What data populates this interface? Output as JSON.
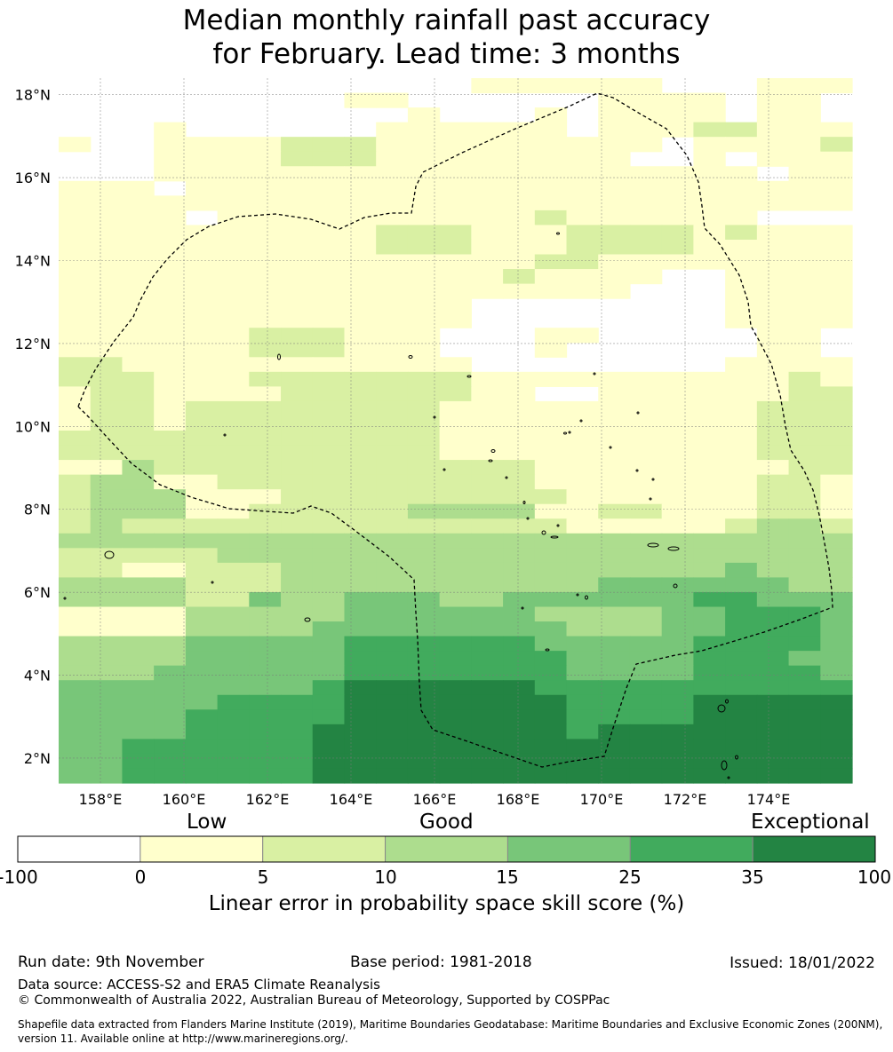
{
  "title": {
    "line1": "Median monthly rainfall past accuracy",
    "line2": "for February. Lead time: 3 months"
  },
  "map": {
    "lon_range": [
      157,
      176
    ],
    "lat_range": [
      1.4,
      18.4
    ],
    "lat_labels": [
      "18°N",
      "16°N",
      "14°N",
      "12°N",
      "10°N",
      "8°N",
      "6°N",
      "4°N",
      "2°N"
    ],
    "lat_values": [
      18,
      16,
      14,
      12,
      10,
      8,
      6,
      4,
      2
    ],
    "lon_labels": [
      "158°E",
      "160°E",
      "162°E",
      "164°E",
      "166°E",
      "168°E",
      "170°E",
      "172°E",
      "174°E"
    ],
    "lon_values": [
      158,
      160,
      162,
      164,
      166,
      168,
      170,
      172,
      174
    ],
    "colors": [
      "#ffffff",
      "#ffffcc",
      "#d9f0a3",
      "#addd8e",
      "#78c679",
      "#41ab5d",
      "#238443"
    ],
    "grid_rows": [
      "0000000000000111111000111",
      "0000000001100000011110110",
      "0000000000010001011110110",
      "0001000000111111011122111",
      "1001111222111111111011112",
      "0001111222111111110010111",
      "0001111111111111111111011",
      "1110111111111111111111111",
      "1111111111111111111111111",
      "1111011111111112111111000",
      "1111111111222111222212111",
      "1111111111222111222211111",
      "1111111111111112211111111",
      "1111111111111121111001111",
      "1111111111111111110001111",
      "1111111111111000000001111",
      "1111111111111000000001111",
      "1111112221110001100000110",
      "1111112221110001000000110",
      "2211111111111000000001111",
      "2221112222222111111111121",
      "1221111222222110011111122",
      "1221222222221111111111222",
      "1221222222221111111111222",
      "2222222222221111111111222",
      "2222222222221111111111222",
      "1132222222222221111111122",
      "2331122222222221111111221",
      "2333111222222222111111221",
      "2333112222233331122111221",
      "2322222222222222111112332",
      "3333333333333333333333333",
      "2222233333333333333333333",
      "2211222333333333333334333",
      "3333222333333333344444433",
      "3333224334443344444455444",
      "1111333334444443333445554",
      "1111333344444444333445554",
      "3333444445555554444455554",
      "3333444445555555444455544",
      "3334444445555555444455554",
      "4444444456666665555555555",
      "4444455556666666555566666",
      "4444555556666666555566666",
      "4444555566666666566666666",
      "4455555566666666666666666",
      "4455555566666666666666666",
      "4455555566666666666666666"
    ]
  },
  "colorbar": {
    "categories": [
      "Low",
      "Good",
      "Exceptional"
    ],
    "ticks": [
      "-100",
      "0",
      "5",
      "10",
      "15",
      "25",
      "35",
      "100"
    ],
    "colors": [
      "#ffffff",
      "#ffffcc",
      "#d9f0a3",
      "#addd8e",
      "#78c679",
      "#41ab5d",
      "#238443"
    ],
    "title": "Linear error in probability space skill score (%)"
  },
  "footer": {
    "run_date": "Run date: 9th November",
    "base_period": "Base period: 1981-2018",
    "issued": "Issued: 18/01/2022",
    "data_source": "Data source: ACCESS-S2 and ERA5 Climate Reanalysis",
    "copyright": "© Commonwealth of Australia 2022, Australian Bureau of Meteorology, Supported by COSPPac",
    "shapefile_credit": "Shapefile data extracted from Flanders Marine Institute (2019), Maritime Boundaries Geodatabase: Maritime Boundaries and Exclusive Economic Zones (200NM), version 11. Available online at http://www.marineregions.org/."
  }
}
